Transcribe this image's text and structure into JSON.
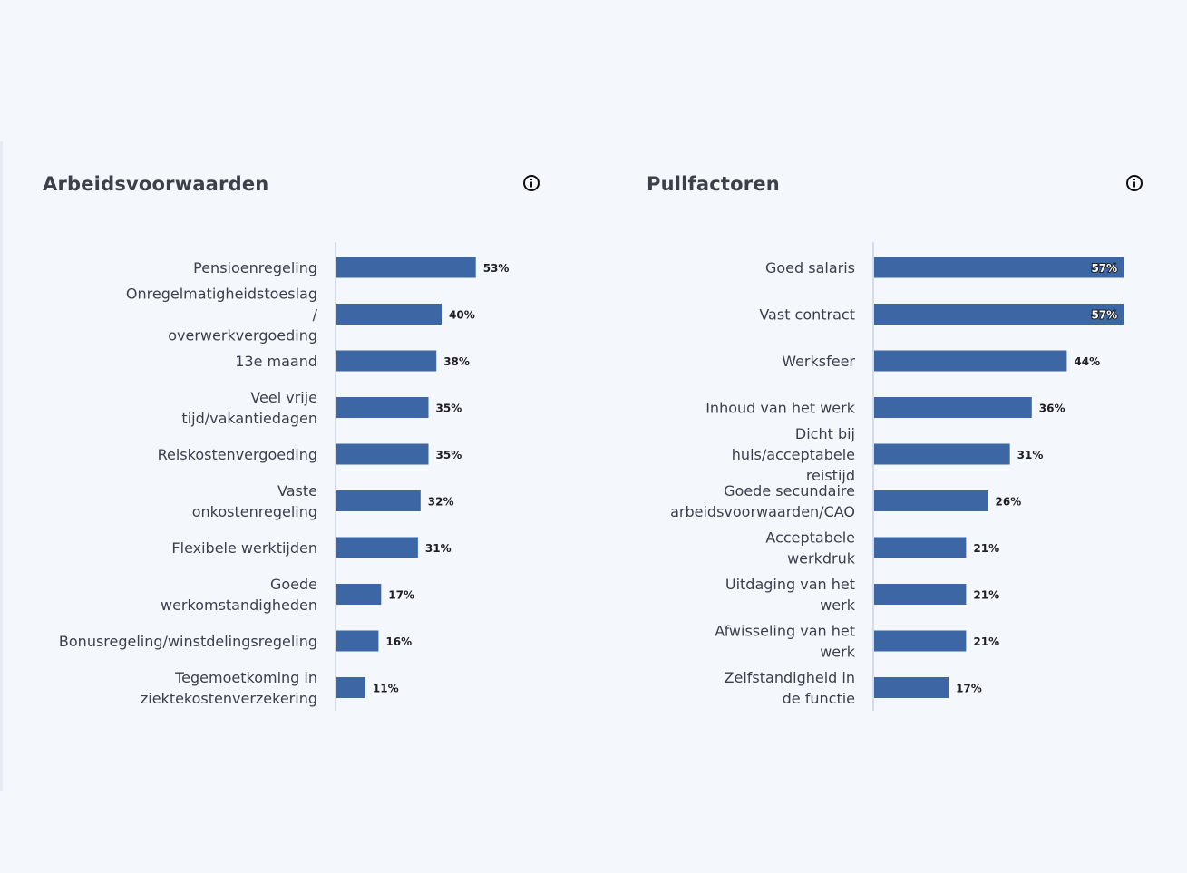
{
  "chart_data": [
    {
      "type": "bar",
      "orientation": "horizontal",
      "title": "Arbeidsvoorwaarden",
      "categories": [
        "Pensioenregeling",
        "Onregelmatigheidstoeslag / overwerkvergoeding",
        "13e maand",
        "Veel vrije tijd/vakantiedagen",
        "Reiskostenvergoeding",
        "Vaste onkostenregeling",
        "Flexibele werktijden",
        "Goede werkomstandigheden",
        "Bonusregeling/winstdelingsregeling",
        "Tegemoetkoming in ziektekostenverzekering"
      ],
      "category_lines": [
        [
          "Pensioenregeling"
        ],
        [
          "Onregelmatigheidstoeslag",
          "/",
          "overwerkvergoeding"
        ],
        [
          "13e maand"
        ],
        [
          "Veel vrije",
          "tijd/vakantiedagen"
        ],
        [
          "Reiskostenvergoeding"
        ],
        [
          "Vaste",
          "onkostenregeling"
        ],
        [
          "Flexibele werktijden"
        ],
        [
          "Goede",
          "werkomstandigheden"
        ],
        [
          "Bonusregeling/winstdelingsregeling"
        ],
        [
          "Tegemoetkoming in",
          "ziektekostenverzekering"
        ]
      ],
      "values": [
        53,
        40,
        38,
        35,
        35,
        32,
        31,
        17,
        16,
        11
      ],
      "value_labels": [
        "53%",
        "40%",
        "38%",
        "35%",
        "35%",
        "32%",
        "31%",
        "17%",
        "16%",
        "11%"
      ],
      "unit": "%",
      "xlim": [
        0,
        100
      ],
      "grid": false,
      "legend": "none",
      "bar_color": "#3d67a4"
    },
    {
      "type": "bar",
      "orientation": "horizontal",
      "title": "Pullfactoren",
      "categories": [
        "Goed salaris",
        "Vast contract",
        "Werksfeer",
        "Inhoud van het werk",
        "Dicht bij huis/acceptabele reistijd",
        "Goede secundaire arbeidsvoorwaarden/CAO",
        "Acceptabele werkdruk",
        "Uitdaging van het werk",
        "Afwisseling van het werk",
        "Zelfstandigheid in de functie"
      ],
      "category_lines": [
        [
          "Goed salaris"
        ],
        [
          "Vast contract"
        ],
        [
          "Werksfeer"
        ],
        [
          "Inhoud van het werk"
        ],
        [
          "Dicht bij",
          "huis/acceptabele",
          "reistijd"
        ],
        [
          "Goede secundaire",
          "arbeidsvoorwaarden/CAO"
        ],
        [
          "Acceptabele",
          "werkdruk"
        ],
        [
          "Uitdaging van het",
          "werk"
        ],
        [
          "Afwisseling van het",
          "werk"
        ],
        [
          "Zelfstandigheid in",
          "de functie"
        ]
      ],
      "values": [
        57,
        57,
        44,
        36,
        31,
        26,
        21,
        21,
        21,
        17
      ],
      "value_labels": [
        "57%",
        "57%",
        "44%",
        "36%",
        "31%",
        "26%",
        "21%",
        "21%",
        "21%",
        "17%"
      ],
      "unit": "%",
      "xlim": [
        0,
        58
      ],
      "grid": false,
      "legend": "none",
      "bar_color": "#3d67a4"
    }
  ],
  "icons": {
    "info": "info-circle-icon"
  }
}
